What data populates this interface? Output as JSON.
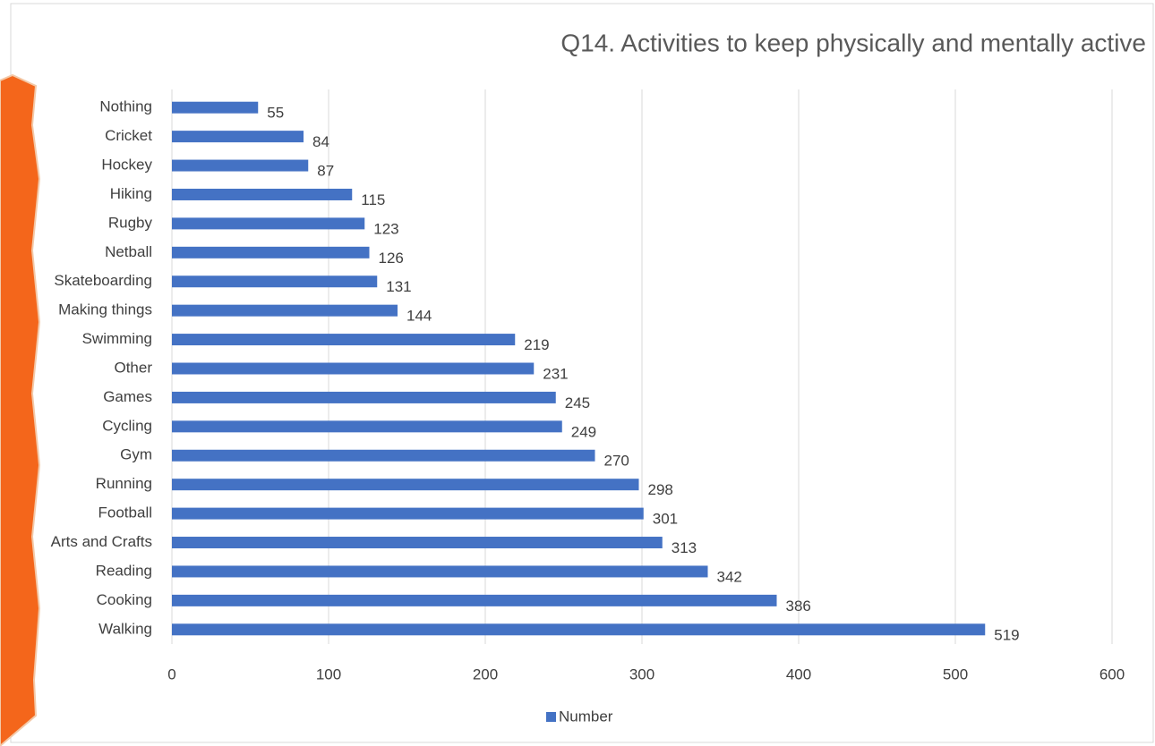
{
  "chart_data": {
    "type": "bar",
    "orientation": "horizontal",
    "title": "Q14. Activities to keep physically and mentally active",
    "categories": [
      "Nothing",
      "Cricket",
      "Hockey",
      "Hiking",
      "Rugby",
      "Netball",
      "Skateboarding",
      "Making things",
      "Swimming",
      "Other",
      "Games",
      "Cycling",
      "Gym",
      "Running",
      "Football",
      "Arts and Crafts",
      "Reading",
      "Cooking",
      "Walking"
    ],
    "series": [
      {
        "name": "Number",
        "color": "#4472c4",
        "values": [
          55,
          84,
          87,
          115,
          123,
          126,
          131,
          144,
          219,
          231,
          245,
          249,
          270,
          298,
          301,
          313,
          342,
          386,
          519
        ]
      }
    ],
    "xlim": [
      0,
      600
    ],
    "xticks": [
      0,
      100,
      200,
      300,
      400,
      500,
      600
    ],
    "grid": true,
    "legend": "bottom"
  }
}
